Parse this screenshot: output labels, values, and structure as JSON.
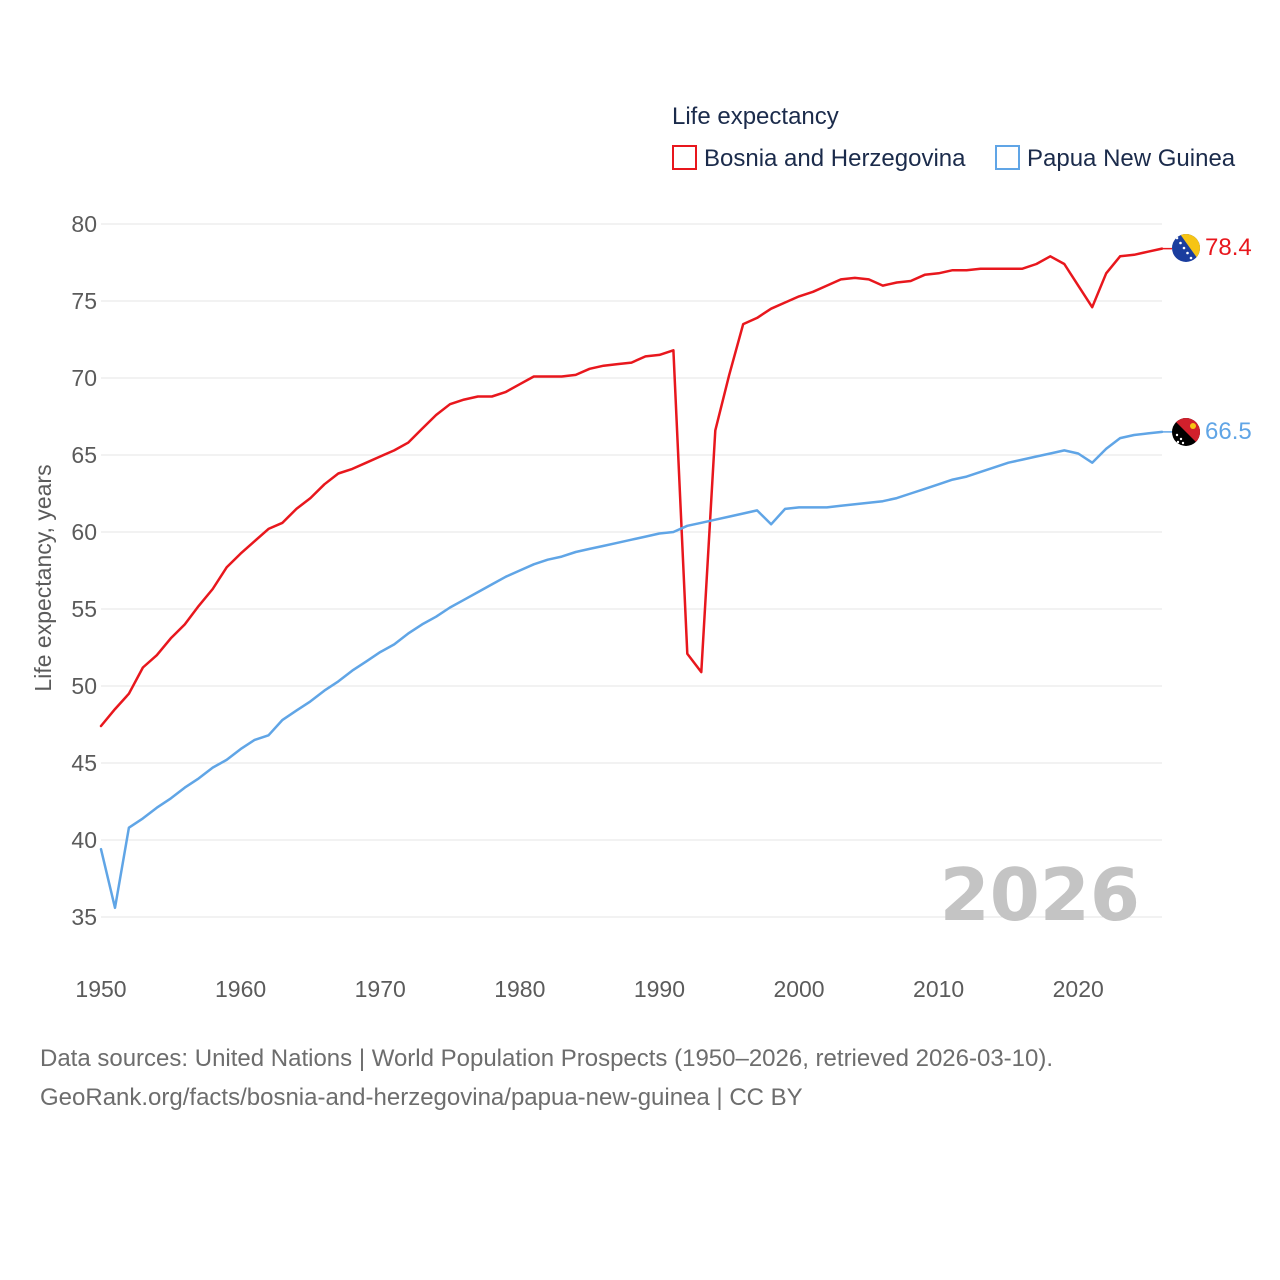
{
  "chart_data": {
    "type": "line",
    "title": "Life expectancy",
    "xlabel": "",
    "ylabel": "Life expectancy, years",
    "xlim": [
      1950,
      2026
    ],
    "ylim": [
      35,
      80
    ],
    "x_ticks": [
      1950,
      1960,
      1970,
      1980,
      1990,
      2000,
      2010,
      2020
    ],
    "y_ticks": [
      35,
      40,
      45,
      50,
      55,
      60,
      65,
      70,
      75,
      80
    ],
    "grid": true,
    "legend_position": "top-right",
    "year_watermark": "2026",
    "series": [
      {
        "name": "Bosnia and Herzegovina",
        "color": "#e8171d",
        "end_label": "78.4",
        "flag": "bosnia-flag-icon",
        "points": [
          [
            1950,
            47.4
          ],
          [
            1951,
            48.5
          ],
          [
            1952,
            49.5
          ],
          [
            1953,
            51.2
          ],
          [
            1954,
            52.0
          ],
          [
            1955,
            53.1
          ],
          [
            1956,
            54.0
          ],
          [
            1957,
            55.2
          ],
          [
            1958,
            56.3
          ],
          [
            1959,
            57.7
          ],
          [
            1960,
            58.6
          ],
          [
            1961,
            59.4
          ],
          [
            1962,
            60.2
          ],
          [
            1963,
            60.6
          ],
          [
            1964,
            61.5
          ],
          [
            1965,
            62.2
          ],
          [
            1966,
            63.1
          ],
          [
            1967,
            63.8
          ],
          [
            1968,
            64.1
          ],
          [
            1969,
            64.5
          ],
          [
            1970,
            64.9
          ],
          [
            1971,
            65.3
          ],
          [
            1972,
            65.8
          ],
          [
            1973,
            66.7
          ],
          [
            1974,
            67.6
          ],
          [
            1975,
            68.3
          ],
          [
            1976,
            68.6
          ],
          [
            1977,
            68.8
          ],
          [
            1978,
            68.8
          ],
          [
            1979,
            69.1
          ],
          [
            1980,
            69.6
          ],
          [
            1981,
            70.1
          ],
          [
            1982,
            70.1
          ],
          [
            1983,
            70.1
          ],
          [
            1984,
            70.2
          ],
          [
            1985,
            70.6
          ],
          [
            1986,
            70.8
          ],
          [
            1987,
            70.9
          ],
          [
            1988,
            71.0
          ],
          [
            1989,
            71.4
          ],
          [
            1990,
            71.5
          ],
          [
            1991,
            71.8
          ],
          [
            1992,
            52.1
          ],
          [
            1993,
            50.9
          ],
          [
            1994,
            66.6
          ],
          [
            1995,
            70.2
          ],
          [
            1996,
            73.5
          ],
          [
            1997,
            73.9
          ],
          [
            1998,
            74.5
          ],
          [
            1999,
            74.9
          ],
          [
            2000,
            75.3
          ],
          [
            2001,
            75.6
          ],
          [
            2002,
            76.0
          ],
          [
            2003,
            76.4
          ],
          [
            2004,
            76.5
          ],
          [
            2005,
            76.4
          ],
          [
            2006,
            76.0
          ],
          [
            2007,
            76.2
          ],
          [
            2008,
            76.3
          ],
          [
            2009,
            76.7
          ],
          [
            2010,
            76.8
          ],
          [
            2011,
            77.0
          ],
          [
            2012,
            77.0
          ],
          [
            2013,
            77.1
          ],
          [
            2014,
            77.1
          ],
          [
            2015,
            77.1
          ],
          [
            2016,
            77.1
          ],
          [
            2017,
            77.4
          ],
          [
            2018,
            77.9
          ],
          [
            2019,
            77.4
          ],
          [
            2020,
            76.0
          ],
          [
            2021,
            74.6
          ],
          [
            2022,
            76.8
          ],
          [
            2023,
            77.9
          ],
          [
            2024,
            78.0
          ],
          [
            2025,
            78.2
          ],
          [
            2026,
            78.4
          ]
        ]
      },
      {
        "name": "Papua New Guinea",
        "color": "#60a5e6",
        "end_label": "66.5",
        "flag": "papua-new-guinea-flag-icon",
        "points": [
          [
            1950,
            39.4
          ],
          [
            1951,
            35.6
          ],
          [
            1952,
            40.8
          ],
          [
            1953,
            41.4
          ],
          [
            1954,
            42.1
          ],
          [
            1955,
            42.7
          ],
          [
            1956,
            43.4
          ],
          [
            1957,
            44.0
          ],
          [
            1958,
            44.7
          ],
          [
            1959,
            45.2
          ],
          [
            1960,
            45.9
          ],
          [
            1961,
            46.5
          ],
          [
            1962,
            46.8
          ],
          [
            1963,
            47.8
          ],
          [
            1964,
            48.4
          ],
          [
            1965,
            49.0
          ],
          [
            1966,
            49.7
          ],
          [
            1967,
            50.3
          ],
          [
            1968,
            51.0
          ],
          [
            1969,
            51.6
          ],
          [
            1970,
            52.2
          ],
          [
            1971,
            52.7
          ],
          [
            1972,
            53.4
          ],
          [
            1973,
            54.0
          ],
          [
            1974,
            54.5
          ],
          [
            1975,
            55.1
          ],
          [
            1976,
            55.6
          ],
          [
            1977,
            56.1
          ],
          [
            1978,
            56.6
          ],
          [
            1979,
            57.1
          ],
          [
            1980,
            57.5
          ],
          [
            1981,
            57.9
          ],
          [
            1982,
            58.2
          ],
          [
            1983,
            58.4
          ],
          [
            1984,
            58.7
          ],
          [
            1985,
            58.9
          ],
          [
            1986,
            59.1
          ],
          [
            1987,
            59.3
          ],
          [
            1988,
            59.5
          ],
          [
            1989,
            59.7
          ],
          [
            1990,
            59.9
          ],
          [
            1991,
            60.0
          ],
          [
            1992,
            60.4
          ],
          [
            1993,
            60.6
          ],
          [
            1994,
            60.8
          ],
          [
            1995,
            61.0
          ],
          [
            1996,
            61.2
          ],
          [
            1997,
            61.4
          ],
          [
            1998,
            60.5
          ],
          [
            1999,
            61.5
          ],
          [
            2000,
            61.6
          ],
          [
            2001,
            61.6
          ],
          [
            2002,
            61.6
          ],
          [
            2003,
            61.7
          ],
          [
            2004,
            61.8
          ],
          [
            2005,
            61.9
          ],
          [
            2006,
            62.0
          ],
          [
            2007,
            62.2
          ],
          [
            2008,
            62.5
          ],
          [
            2009,
            62.8
          ],
          [
            2010,
            63.1
          ],
          [
            2011,
            63.4
          ],
          [
            2012,
            63.6
          ],
          [
            2013,
            63.9
          ],
          [
            2014,
            64.2
          ],
          [
            2015,
            64.5
          ],
          [
            2016,
            64.7
          ],
          [
            2017,
            64.9
          ],
          [
            2018,
            65.1
          ],
          [
            2019,
            65.3
          ],
          [
            2020,
            65.1
          ],
          [
            2021,
            64.5
          ],
          [
            2022,
            65.4
          ],
          [
            2023,
            66.1
          ],
          [
            2024,
            66.3
          ],
          [
            2025,
            66.4
          ],
          [
            2026,
            66.5
          ]
        ]
      }
    ]
  },
  "footer": {
    "source_line": "Data sources: United Nations | World Population Prospects (1950–2026, retrieved 2026-03-10).",
    "link_line": "GeoRank.org/facts/bosnia-and-herzegovina/papua-new-guinea | CC BY"
  }
}
